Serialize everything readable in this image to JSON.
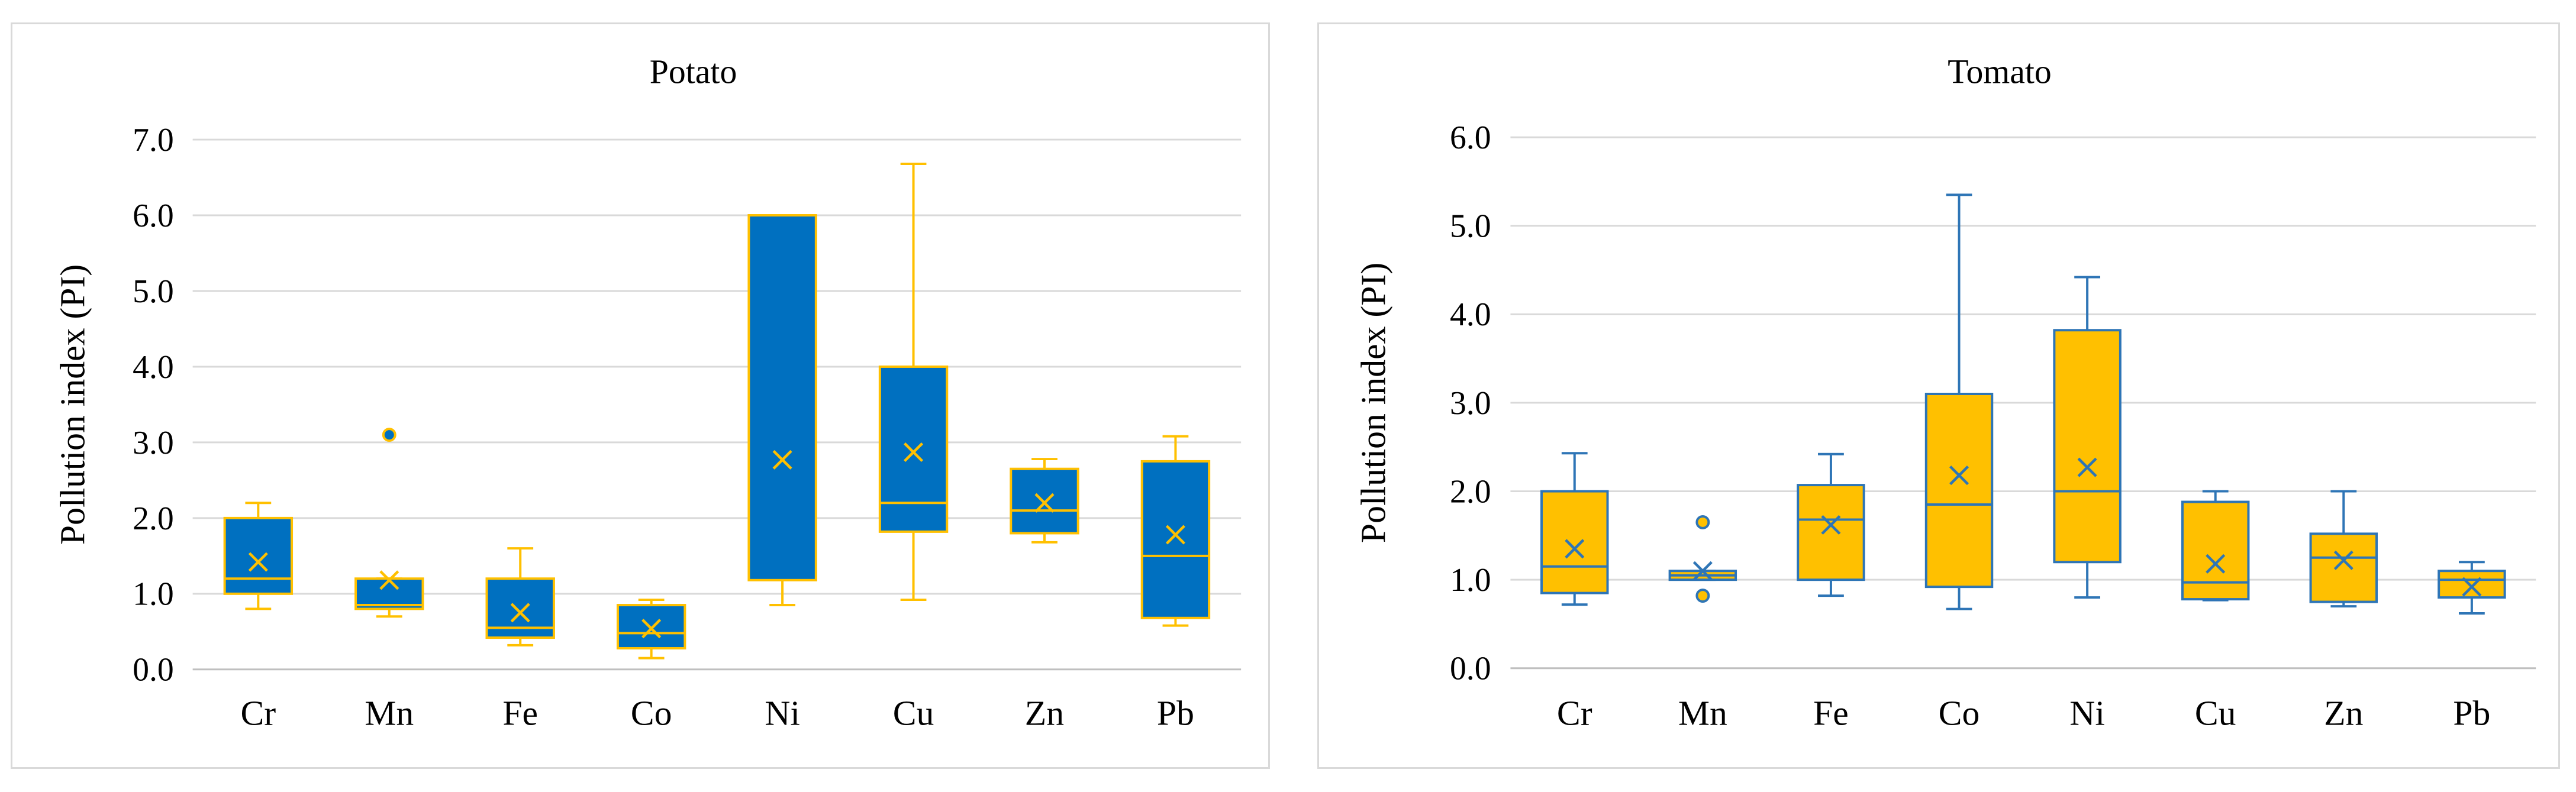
{
  "chart_data": [
    {
      "type": "box",
      "title": "Potato",
      "ylabel": "Pollution index (PI)",
      "xlabel": "",
      "ylim": [
        0,
        7
      ],
      "yticks": [
        "0.0",
        "1.0",
        "2.0",
        "3.0",
        "4.0",
        "5.0",
        "6.0",
        "7.0"
      ],
      "grid": true,
      "box_color": "#0070c0",
      "line_color": "#ffc000",
      "categories": [
        "Cr",
        "Mn",
        "Fe",
        "Co",
        "Ni",
        "Cu",
        "Zn",
        "Pb"
      ],
      "boxes": [
        {
          "name": "Cr",
          "min": 0.8,
          "q1": 1.0,
          "median": 1.2,
          "q3": 2.0,
          "max": 2.2,
          "mean": 1.42,
          "outliers": []
        },
        {
          "name": "Mn",
          "min": 0.7,
          "q1": 0.8,
          "median": 0.85,
          "q3": 1.2,
          "max": 1.2,
          "mean": 1.18,
          "outliers": [
            3.1
          ]
        },
        {
          "name": "Fe",
          "min": 0.32,
          "q1": 0.42,
          "median": 0.55,
          "q3": 1.2,
          "max": 1.6,
          "mean": 0.75,
          "outliers": []
        },
        {
          "name": "Co",
          "min": 0.15,
          "q1": 0.28,
          "median": 0.48,
          "q3": 0.85,
          "max": 0.92,
          "mean": 0.54,
          "outliers": []
        },
        {
          "name": "Ni",
          "min": 0.85,
          "q1": 1.18,
          "median": 6.0,
          "q3": 6.0,
          "max": 6.0,
          "mean": 2.77,
          "outliers": []
        },
        {
          "name": "Cu",
          "min": 0.92,
          "q1": 1.82,
          "median": 2.2,
          "q3": 4.0,
          "max": 6.68,
          "mean": 2.87,
          "outliers": []
        },
        {
          "name": "Zn",
          "min": 1.68,
          "q1": 1.8,
          "median": 2.1,
          "q3": 2.65,
          "max": 2.78,
          "mean": 2.2,
          "outliers": []
        },
        {
          "name": "Pb",
          "min": 0.58,
          "q1": 0.68,
          "median": 1.5,
          "q3": 2.75,
          "max": 3.08,
          "mean": 1.78,
          "outliers": []
        }
      ]
    },
    {
      "type": "box",
      "title": "Tomato",
      "ylabel": "Pollution index (PI)",
      "xlabel": "",
      "ylim": [
        0,
        6
      ],
      "yticks": [
        "0.0",
        "1.0",
        "2.0",
        "3.0",
        "4.0",
        "5.0",
        "6.0"
      ],
      "grid": true,
      "box_color": "#ffc000",
      "line_color": "#2e75b6",
      "categories": [
        "Cr",
        "Mn",
        "Fe",
        "Co",
        "Ni",
        "Cu",
        "Zn",
        "Pb"
      ],
      "boxes": [
        {
          "name": "Cr",
          "min": 0.72,
          "q1": 0.85,
          "median": 1.15,
          "q3": 2.0,
          "max": 2.43,
          "mean": 1.35,
          "outliers": []
        },
        {
          "name": "Mn",
          "min": 1.0,
          "q1": 1.0,
          "median": 1.05,
          "q3": 1.1,
          "max": 1.1,
          "mean": 1.1,
          "outliers": [
            1.65,
            0.82
          ]
        },
        {
          "name": "Fe",
          "min": 0.82,
          "q1": 1.0,
          "median": 1.68,
          "q3": 2.07,
          "max": 2.42,
          "mean": 1.62,
          "outliers": []
        },
        {
          "name": "Co",
          "min": 0.67,
          "q1": 0.92,
          "median": 1.85,
          "q3": 3.1,
          "max": 5.35,
          "mean": 2.18,
          "outliers": []
        },
        {
          "name": "Ni",
          "min": 0.8,
          "q1": 1.2,
          "median": 2.0,
          "q3": 3.82,
          "max": 4.42,
          "mean": 2.27,
          "outliers": []
        },
        {
          "name": "Cu",
          "min": 0.77,
          "q1": 0.78,
          "median": 0.97,
          "q3": 1.88,
          "max": 2.0,
          "mean": 1.18,
          "outliers": []
        },
        {
          "name": "Zn",
          "min": 0.7,
          "q1": 0.75,
          "median": 1.25,
          "q3": 1.52,
          "max": 2.0,
          "mean": 1.22,
          "outliers": []
        },
        {
          "name": "Pb",
          "min": 0.62,
          "q1": 0.8,
          "median": 1.0,
          "q3": 1.1,
          "max": 1.2,
          "mean": 0.92,
          "outliers": []
        }
      ]
    }
  ]
}
